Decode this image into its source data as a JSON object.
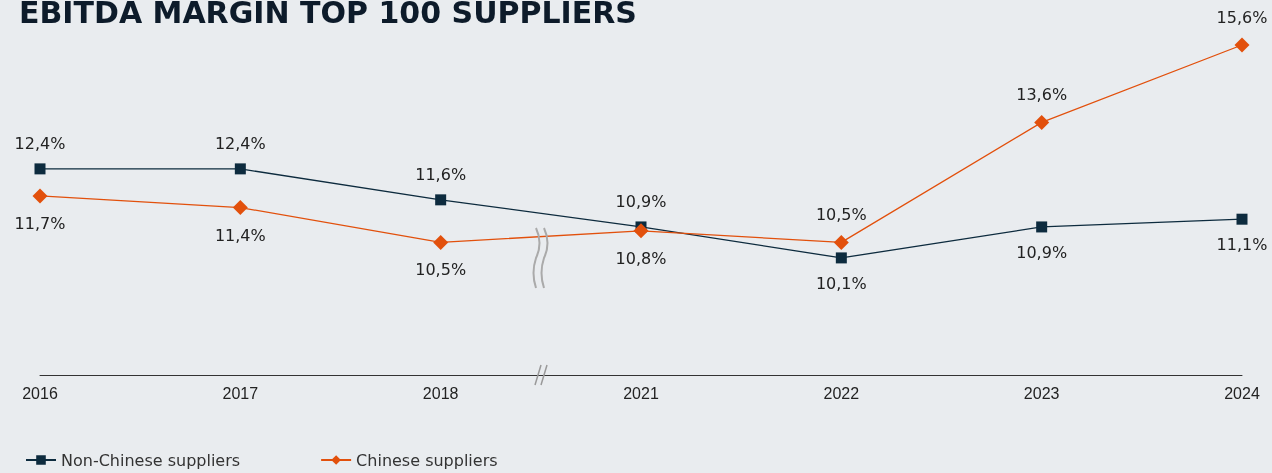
{
  "chart_data": {
    "type": "line",
    "title": "EBITDA MARGIN TOP 100 SUPPLIERS",
    "categories": [
      "2016",
      "2017",
      "2018",
      "2021",
      "2022",
      "2023",
      "2024"
    ],
    "series": [
      {
        "name": "Non-Chinese suppliers",
        "color": "#0d2b3e",
        "marker": "square",
        "values": [
          12.4,
          12.4,
          11.6,
          10.9,
          10.1,
          10.9,
          11.1
        ],
        "value_labels": [
          "12,4%",
          "12,4%",
          "11,6%",
          "10,9%",
          "10,1%",
          "10,9%",
          "11,1%"
        ]
      },
      {
        "name": "Chinese suppliers",
        "color": "#e2500c",
        "marker": "diamond",
        "values": [
          11.7,
          11.4,
          10.5,
          10.8,
          10.5,
          13.6,
          15.6
        ],
        "value_labels": [
          "11,7%",
          "11,4%",
          "10,5%",
          "10,8%",
          "10,5%",
          "13,6%",
          "15,6%"
        ]
      }
    ],
    "grid": false,
    "legend": "bottom left"
  }
}
